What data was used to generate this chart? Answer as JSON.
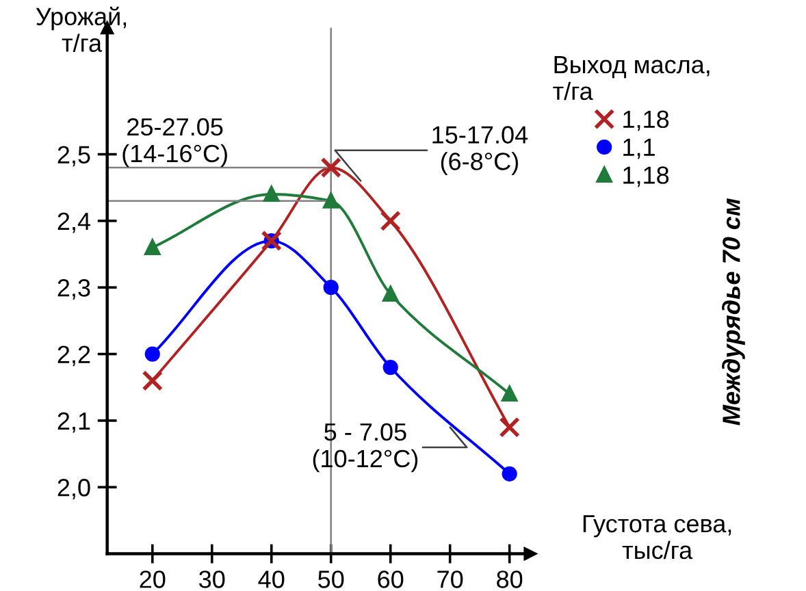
{
  "chart_data": {
    "type": "line",
    "xlabel": "Густота сева,\nтыс/га",
    "ylabel": "Урожай,\nт/га",
    "legend_title": "Выход масла,\nт/га",
    "x": [
      20,
      40,
      50,
      60,
      80
    ],
    "series": [
      {
        "name": "1,18",
        "color": "#b22222",
        "marker": "cross",
        "values": [
          2.16,
          2.37,
          2.48,
          2.4,
          2.09
        ]
      },
      {
        "name": "1,1",
        "color": "#0000ff",
        "marker": "circle",
        "values": [
          2.2,
          2.37,
          2.3,
          2.18,
          2.02
        ]
      },
      {
        "name": "1,18",
        "color": "#1e7b3a",
        "marker": "triangle",
        "values": [
          2.36,
          2.44,
          2.43,
          2.29,
          2.14
        ]
      }
    ],
    "xlim": [
      12.4,
      83.5
    ],
    "ylim": [
      1.9,
      2.69
    ],
    "xticks": [
      20,
      30,
      40,
      50,
      60,
      70,
      80
    ],
    "yticks": [
      {
        "value": 2.0,
        "label": "2,0"
      },
      {
        "value": 2.1,
        "label": "2,1"
      },
      {
        "value": 2.2,
        "label": "2,2"
      },
      {
        "value": 2.3,
        "label": "2,3"
      },
      {
        "value": 2.4,
        "label": "2,4"
      },
      {
        "value": 2.5,
        "label": "2,5"
      }
    ],
    "ref_lines": [
      {
        "axis": "y",
        "value": 2.48,
        "color": "#808080"
      },
      {
        "axis": "y",
        "value": 2.43,
        "color": "#808080"
      },
      {
        "axis": "x",
        "value": 50,
        "color": "#808080"
      }
    ],
    "annotations": [
      {
        "text": "15-17.04\n(6-8°C)",
        "x": 55,
        "y": 2.46
      },
      {
        "text": "5 - 7.05\n(10-12°C)",
        "x": 70,
        "y": 2.09
      },
      "25-27.05\n(14-16°C)",
      "Междурядье 70 см"
    ],
    "grid": false,
    "legend": "top right",
    "line_style": "solid"
  }
}
